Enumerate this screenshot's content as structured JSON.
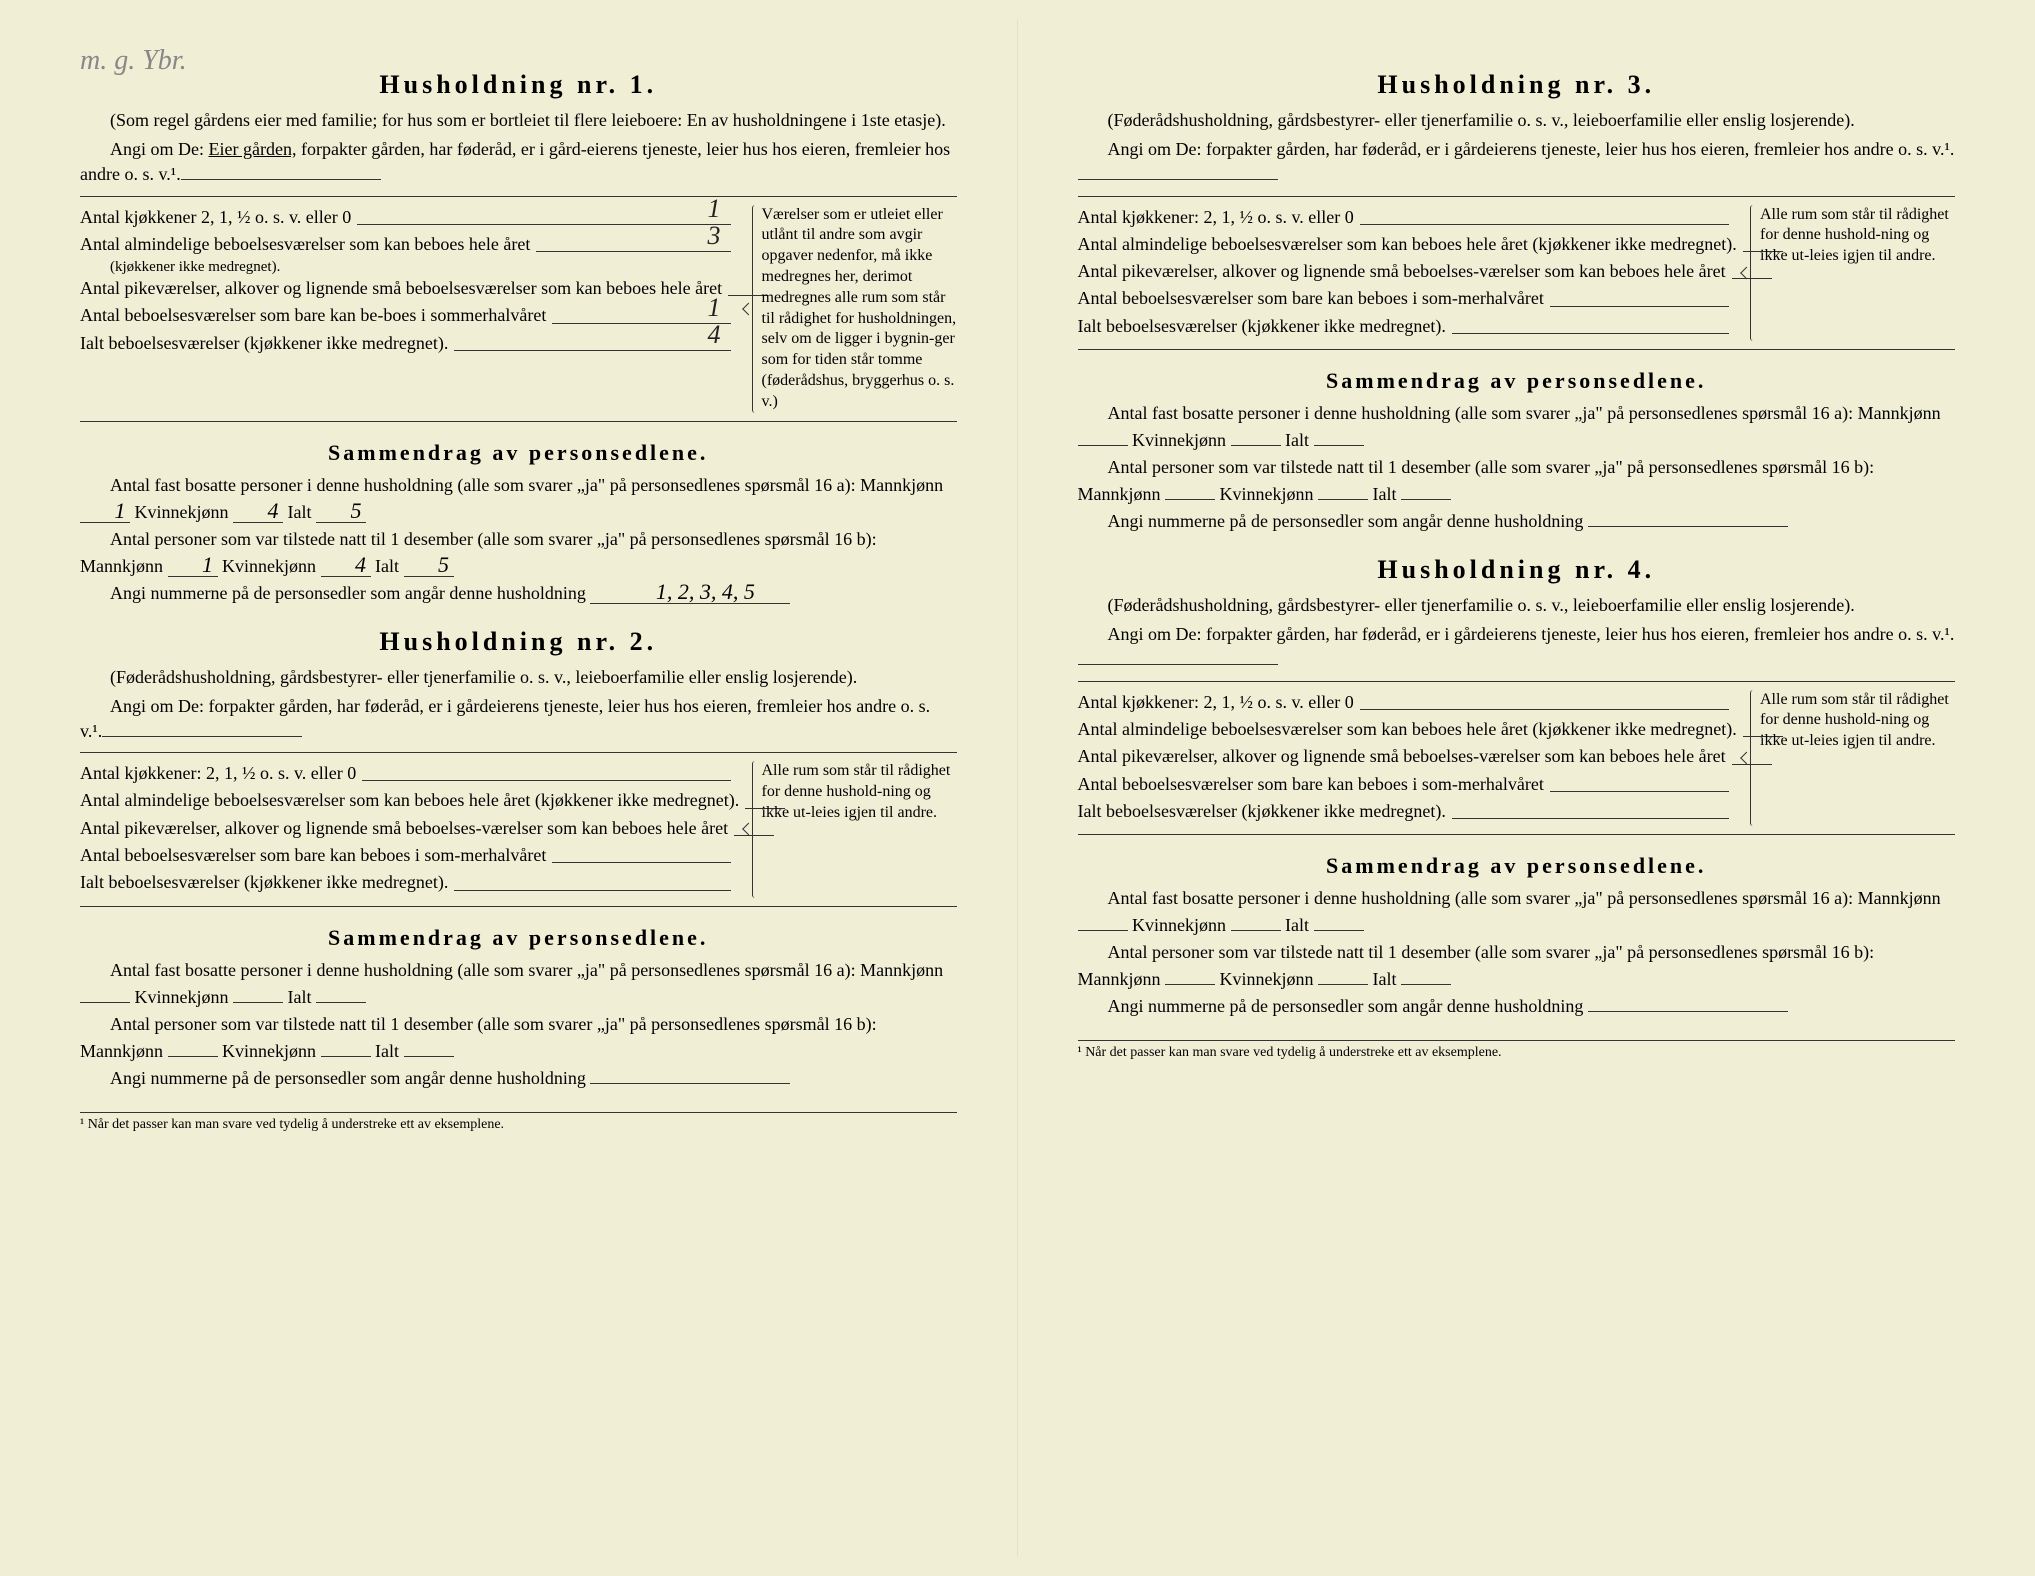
{
  "page_bg": "#f0eed5",
  "handwriting_note": "m. g. Ybr.",
  "households": [
    {
      "title": "Husholdning nr. 1.",
      "intro1": "(Som regel gårdens eier med familie; for hus som er bortleiet til flere leieboere: En av husholdningene i 1ste etasje).",
      "intro2_pre": "Angi om De: ",
      "intro2_underlined": "Eier gården,",
      "intro2_post": " forpakter gården, har føderåd, er i gård-eierens tjeneste, leier hus hos eieren, fremleier hos andre o. s. v.¹.",
      "fill_end": "",
      "rows": [
        {
          "label": "Antal kjøkkener 2, 1, ½ o. s. v. eller 0",
          "value": "1"
        },
        {
          "label": "Antal almindelige beboelsesværelser som kan beboes hele året",
          "sublabel": "(kjøkkener ikke medregnet).",
          "value": "3"
        },
        {
          "label": "Antal pikeværelser, alkover og lignende små beboelsesværelser som kan beboes hele året",
          "value": ""
        },
        {
          "label": "Antal beboelsesværelser som bare kan be-boes i sommerhalvåret",
          "value": "1"
        },
        {
          "label": "Ialt beboelsesværelser (kjøkkener ikke medregnet).",
          "value": "4"
        }
      ],
      "side_note": "Værelser som er utleiet eller utlånt til andre som avgir opgaver nedenfor, må ikke medregnes her, derimot medregnes alle rum som står til rådighet for husholdningen, selv om de ligger i bygnin-ger som for tiden står tomme (føderådshus, bryggerhus o. s. v.)",
      "summary_title": "Sammendrag av personsedlene.",
      "s16a_text": "Antal fast bosatte personer i denne husholdning (alle som svarer „ja\" på personsedlenes spørsmål 16 a): Mannkjønn",
      "s16a_m": "1",
      "s16a_k": "4",
      "s16a_t": "5",
      "s16b_text": "Antal personer som var tilstede natt til 1 desember (alle som svarer „ja\" på personsedlenes spørsmål 16 b): Mannkjønn",
      "s16b_m": "1",
      "s16b_k": "4",
      "s16b_t": "5",
      "nummer_text": "Angi nummerne på de personsedler som angår denne husholdning",
      "nummer_val": "1, 2, 3, 4, 5"
    },
    {
      "title": "Husholdning nr. 2.",
      "intro1": "(Føderådshusholdning, gårdsbestyrer- eller tjenerfamilie o. s. v., leieboerfamilie eller enslig losjerende).",
      "intro2_pre": "Angi om De:  forpakter gården, har føderåd, er i gårdeierens tjeneste, leier hus hos eieren, fremleier hos andre o. s. v.¹.",
      "intro2_underlined": "",
      "intro2_post": "",
      "fill_end": "",
      "rows": [
        {
          "label": "Antal kjøkkener: 2, 1, ½ o. s. v. eller 0",
          "value": ""
        },
        {
          "label": "Antal almindelige beboelsesværelser som kan beboes hele året (kjøkkener ikke medregnet).",
          "value": ""
        },
        {
          "label": "Antal pikeværelser, alkover og lignende små beboelses-værelser som kan beboes hele året",
          "value": ""
        },
        {
          "label": "Antal beboelsesværelser som bare kan beboes i som-merhalvåret",
          "value": ""
        },
        {
          "label": "Ialt beboelsesværelser (kjøkkener ikke medregnet).",
          "value": ""
        }
      ],
      "side_note": "Alle rum som står til rådighet for denne hushold-ning og ikke ut-leies igjen til andre.",
      "summary_title": "Sammendrag av personsedlene.",
      "s16a_text": "Antal fast bosatte personer i denne husholdning (alle som svarer „ja\" på personsedlenes spørsmål 16 a): Mannkjønn",
      "s16a_m": "",
      "s16a_k": "",
      "s16a_t": "",
      "s16b_text": "Antal personer som var tilstede natt til 1 desember (alle som svarer „ja\" på personsedlenes spørsmål 16 b): Mannkjønn",
      "s16b_m": "",
      "s16b_k": "",
      "s16b_t": "",
      "nummer_text": "Angi nummerne på de personsedler som angår denne husholdning",
      "nummer_val": ""
    },
    {
      "title": "Husholdning nr. 3.",
      "intro1": "(Føderådshusholdning, gårdsbestyrer- eller tjenerfamilie o. s. v., leieboerfamilie eller enslig losjerende).",
      "intro2_pre": "Angi om De:  forpakter gården, har føderåd, er i gårdeierens tjeneste, leier hus hos eieren, fremleier hos andre o. s. v.¹.",
      "intro2_underlined": "",
      "intro2_post": "",
      "fill_end": "",
      "rows": [
        {
          "label": "Antal kjøkkener: 2, 1, ½ o. s. v. eller 0",
          "value": ""
        },
        {
          "label": "Antal almindelige beboelsesværelser som kan beboes hele året (kjøkkener ikke medregnet).",
          "value": ""
        },
        {
          "label": "Antal pikeværelser, alkover og lignende små beboelses-værelser som kan beboes hele året",
          "value": ""
        },
        {
          "label": "Antal beboelsesværelser som bare kan beboes i som-merhalvåret",
          "value": ""
        },
        {
          "label": "Ialt beboelsesværelser (kjøkkener ikke medregnet).",
          "value": ""
        }
      ],
      "side_note": "Alle rum som står til rådighet for denne hushold-ning og ikke ut-leies igjen til andre.",
      "summary_title": "Sammendrag av personsedlene.",
      "s16a_text": "Antal fast bosatte personer i denne husholdning (alle som svarer „ja\" på personsedlenes spørsmål 16 a): Mannkjønn",
      "s16a_m": "",
      "s16a_k": "",
      "s16a_t": "",
      "s16b_text": "Antal personer som var tilstede natt til 1 desember (alle som svarer „ja\" på personsedlenes spørsmål 16 b): Mannkjønn",
      "s16b_m": "",
      "s16b_k": "",
      "s16b_t": "",
      "nummer_text": "Angi nummerne på de personsedler som angår denne husholdning",
      "nummer_val": ""
    },
    {
      "title": "Husholdning nr. 4.",
      "intro1": "(Føderådshusholdning, gårdsbestyrer- eller tjenerfamilie o. s. v., leieboerfamilie eller enslig losjerende).",
      "intro2_pre": "Angi om De:  forpakter gården, har føderåd, er i gårdeierens tjeneste, leier hus hos eieren, fremleier hos andre o. s. v.¹.",
      "intro2_underlined": "",
      "intro2_post": "",
      "fill_end": "",
      "rows": [
        {
          "label": "Antal kjøkkener: 2, 1, ½ o. s. v. eller 0",
          "value": ""
        },
        {
          "label": "Antal almindelige beboelsesværelser som kan beboes hele året (kjøkkener ikke medregnet).",
          "value": ""
        },
        {
          "label": "Antal pikeværelser, alkover og lignende små beboelses-værelser som kan beboes hele året",
          "value": ""
        },
        {
          "label": "Antal beboelsesværelser som bare kan beboes i som-merhalvåret",
          "value": ""
        },
        {
          "label": "Ialt beboelsesværelser (kjøkkener ikke medregnet).",
          "value": ""
        }
      ],
      "side_note": "Alle rum som står til rådighet for denne hushold-ning og ikke ut-leies igjen til andre.",
      "summary_title": "Sammendrag av personsedlene.",
      "s16a_text": "Antal fast bosatte personer i denne husholdning (alle som svarer „ja\" på personsedlenes spørsmål 16 a): Mannkjønn",
      "s16a_m": "",
      "s16a_k": "",
      "s16a_t": "",
      "s16b_text": "Antal personer som var tilstede natt til 1 desember (alle som svarer „ja\" på personsedlenes spørsmål 16 b): Mannkjønn",
      "s16b_m": "",
      "s16b_k": "",
      "s16b_t": "",
      "nummer_text": "Angi nummerne på de personsedler som angår denne husholdning",
      "nummer_val": ""
    }
  ],
  "label_kvinne": "Kvinnekjønn",
  "label_ialt": "Ialt",
  "footnote": "¹ Når det passer kan man svare ved tydelig å understreke ett av eksemplene."
}
